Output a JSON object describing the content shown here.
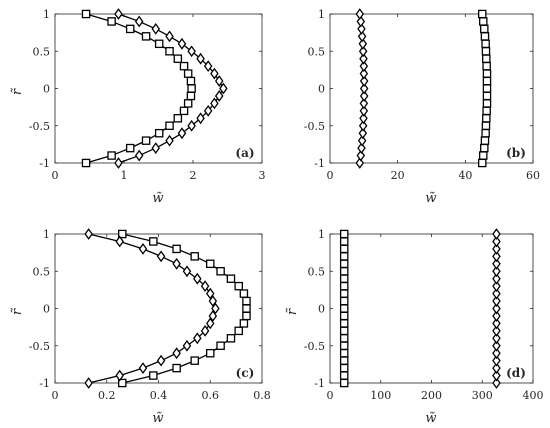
{
  "chart_data": [
    {
      "panel": "(a)",
      "type": "line",
      "xlabel": "w̃",
      "ylabel": "r̃",
      "xlim": [
        0,
        3
      ],
      "ylim": [
        -1,
        1
      ],
      "xticks": [
        "0",
        "1",
        "2",
        "3"
      ],
      "yticks": [
        "1",
        "0.5",
        "0",
        "-0.5",
        "-1"
      ],
      "r": [
        -1,
        -0.9,
        -0.8,
        -0.7,
        -0.6,
        -0.5,
        -0.4,
        -0.3,
        -0.2,
        -0.1,
        0,
        0.1,
        0.2,
        0.3,
        0.4,
        0.5,
        0.6,
        0.7,
        0.8,
        0.9,
        1
      ],
      "series": [
        {
          "marker": "square",
          "w": [
            0.45,
            0.82,
            1.09,
            1.32,
            1.51,
            1.66,
            1.78,
            1.87,
            1.93,
            1.97,
            1.98,
            1.97,
            1.93,
            1.87,
            1.78,
            1.66,
            1.51,
            1.32,
            1.09,
            0.82,
            0.45
          ]
        },
        {
          "marker": "diamond",
          "w": [
            0.92,
            1.22,
            1.46,
            1.66,
            1.84,
            1.98,
            2.11,
            2.22,
            2.31,
            2.38,
            2.44,
            2.38,
            2.31,
            2.22,
            2.11,
            1.98,
            1.84,
            1.66,
            1.46,
            1.22,
            0.92
          ]
        }
      ]
    },
    {
      "panel": "(b)",
      "type": "line",
      "xlabel": "w̃",
      "ylabel": "",
      "xlim": [
        0,
        60
      ],
      "ylim": [
        -1,
        1
      ],
      "xticks": [
        "0",
        "20",
        "40",
        "60"
      ],
      "yticks": [
        "1",
        "0.5",
        "0",
        "-0.5",
        "-1"
      ],
      "r": [
        -1,
        -0.9,
        -0.8,
        -0.7,
        -0.6,
        -0.5,
        -0.4,
        -0.3,
        -0.2,
        -0.1,
        0,
        0.1,
        0.2,
        0.3,
        0.4,
        0.5,
        0.6,
        0.7,
        0.8,
        0.9,
        1
      ],
      "series": [
        {
          "marker": "square",
          "w": [
            45.0,
            45.3,
            45.6,
            45.8,
            46.0,
            46.1,
            46.2,
            46.3,
            46.4,
            46.4,
            46.4,
            46.4,
            46.4,
            46.3,
            46.2,
            46.1,
            46.0,
            45.8,
            45.6,
            45.3,
            45.0
          ]
        },
        {
          "marker": "diamond",
          "w": [
            8.8,
            9.1,
            9.3,
            9.5,
            9.7,
            9.8,
            9.9,
            10.0,
            10.0,
            10.1,
            10.1,
            10.1,
            10.0,
            10.0,
            9.9,
            9.8,
            9.7,
            9.5,
            9.3,
            9.1,
            8.8
          ]
        }
      ]
    },
    {
      "panel": "(c)",
      "type": "line",
      "xlabel": "w̃",
      "ylabel": "r̃",
      "xlim": [
        0,
        0.8
      ],
      "ylim": [
        -1,
        1
      ],
      "xticks": [
        "0",
        "0.2",
        "0.4",
        "0.6",
        "0.8"
      ],
      "yticks": [
        "1",
        "0.5",
        "0",
        "-0.5",
        "-1"
      ],
      "r": [
        -1,
        -0.9,
        -0.8,
        -0.7,
        -0.6,
        -0.5,
        -0.4,
        -0.3,
        -0.2,
        -0.1,
        0,
        0.1,
        0.2,
        0.3,
        0.4,
        0.5,
        0.6,
        0.7,
        0.8,
        0.9,
        1
      ],
      "series": [
        {
          "marker": "square",
          "w": [
            0.26,
            0.38,
            0.47,
            0.54,
            0.6,
            0.64,
            0.68,
            0.71,
            0.73,
            0.74,
            0.74,
            0.74,
            0.73,
            0.71,
            0.68,
            0.64,
            0.6,
            0.54,
            0.47,
            0.38,
            0.26
          ]
        },
        {
          "marker": "diamond",
          "w": [
            0.13,
            0.25,
            0.34,
            0.41,
            0.47,
            0.51,
            0.55,
            0.58,
            0.6,
            0.61,
            0.62,
            0.61,
            0.6,
            0.58,
            0.55,
            0.51,
            0.47,
            0.41,
            0.34,
            0.25,
            0.13
          ]
        }
      ]
    },
    {
      "panel": "(d)",
      "type": "line",
      "xlabel": "w̃",
      "ylabel": "r̃",
      "xlim": [
        0,
        400
      ],
      "ylim": [
        -1,
        1
      ],
      "xticks": [
        "0",
        "100",
        "200",
        "300",
        "400"
      ],
      "yticks": [
        "1",
        "0.5",
        "0",
        "-0.5",
        "-1"
      ],
      "r": [
        -1,
        -0.9,
        -0.8,
        -0.7,
        -0.6,
        -0.5,
        -0.4,
        -0.3,
        -0.2,
        -0.1,
        0,
        0.1,
        0.2,
        0.3,
        0.4,
        0.5,
        0.6,
        0.7,
        0.8,
        0.9,
        1
      ],
      "series": [
        {
          "marker": "square",
          "w": [
            28,
            28,
            28,
            28,
            28,
            28,
            28,
            28,
            28,
            28,
            28,
            28,
            28,
            28,
            28,
            28,
            28,
            28,
            28,
            28,
            28
          ]
        },
        {
          "marker": "diamond",
          "w": [
            328,
            328,
            328,
            328,
            328,
            328,
            328,
            328,
            328,
            328,
            328,
            328,
            328,
            328,
            328,
            328,
            328,
            328,
            328,
            328,
            328
          ]
        }
      ]
    }
  ]
}
